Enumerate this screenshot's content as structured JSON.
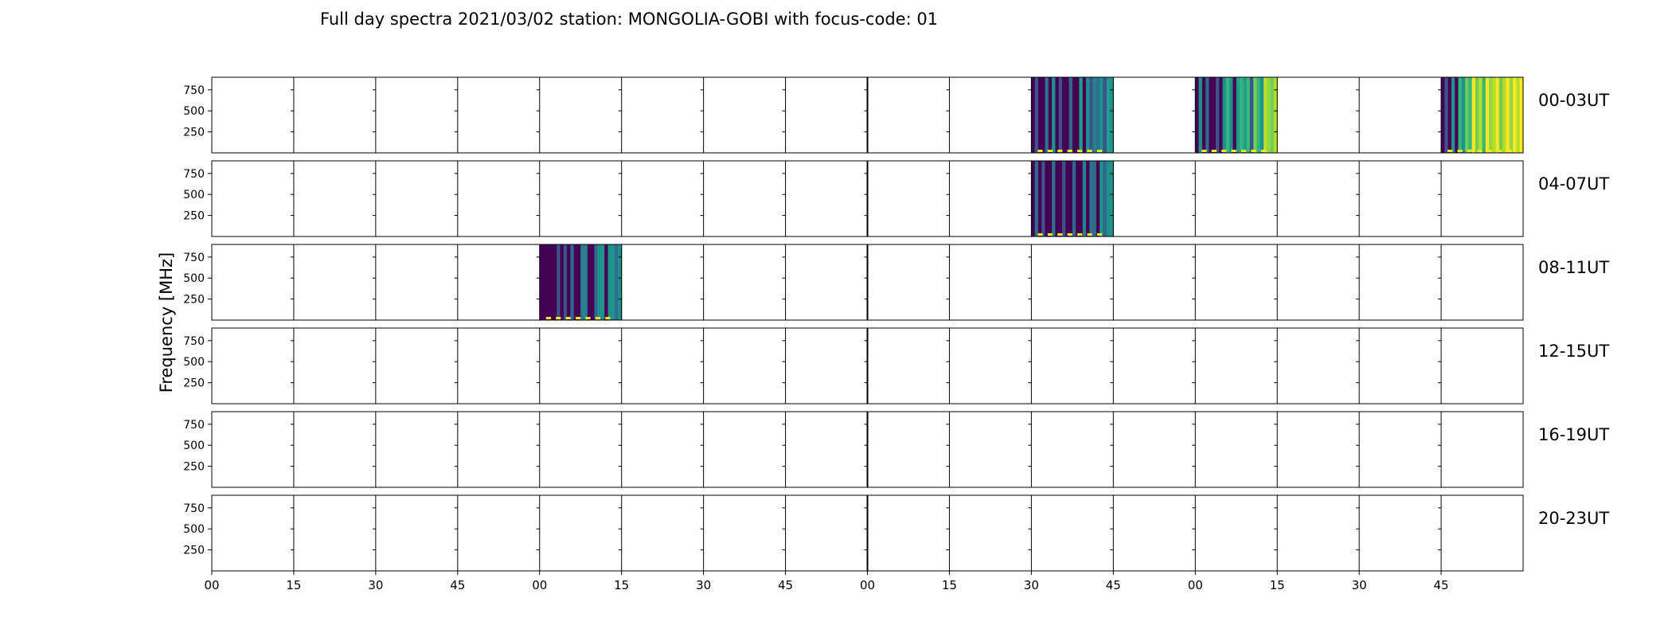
{
  "chart_data": {
    "type": "heatmap",
    "title": "Full day spectra 2021/03/02 station: MONGOLIA-GOBI with focus-code: 01",
    "ylabel": "Frequency [MHz]",
    "ylim": [
      0,
      900
    ],
    "y_ticks": [
      "750",
      "500",
      "250"
    ],
    "x_tick_labels": [
      "00",
      "15",
      "30",
      "45",
      "00",
      "15",
      "30",
      "45",
      "00",
      "15",
      "30",
      "45",
      "00",
      "15",
      "30",
      "45"
    ],
    "columns_per_row": 16,
    "rows": [
      {
        "label": "00-03UT",
        "filled": [
          {
            "slot": 10,
            "colors": [
              "#440154",
              "#3b528b",
              "#440154",
              "#440154",
              "#2c728e",
              "#440154",
              "#21918c",
              "#440154",
              "#3b528b",
              "#440154",
              "#440154",
              "#31688e",
              "#440154",
              "#440154",
              "#1f9e89",
              "#440154",
              "#21918c",
              "#3b528b",
              "#26828e",
              "#2c728e",
              "#21918c",
              "#3b528b",
              "#1f9e89",
              "#21918c"
            ],
            "bottom": "#fde725"
          },
          {
            "slot": 12,
            "colors": [
              "#440154",
              "#21918c",
              "#440154",
              "#31688e",
              "#440154",
              "#440154",
              "#3b528b",
              "#440154",
              "#21918c",
              "#35b779",
              "#21918c",
              "#440154",
              "#1f9e89",
              "#35b779",
              "#1f9e89",
              "#35b779",
              "#3b528b",
              "#6ece58",
              "#35b779",
              "#21918c",
              "#b5de2b",
              "#8fd744",
              "#6ece58",
              "#b5de2b"
            ],
            "bottom": "#fde725"
          },
          {
            "slot": 15,
            "colors": [
              "#440154",
              "#3b528b",
              "#440154",
              "#21918c",
              "#440154",
              "#35b779",
              "#21918c",
              "#6ece58",
              "#35b779",
              "#fde725",
              "#6ece58",
              "#b5de2b",
              "#35b779",
              "#fde725",
              "#8fd744",
              "#b5de2b",
              "#fde725",
              "#6ece58",
              "#b5de2b",
              "#fde725",
              "#8fd744",
              "#fde725",
              "#b5de2b",
              "#fde725"
            ],
            "bottom": "#fde725"
          }
        ]
      },
      {
        "label": "04-07UT",
        "filled": [
          {
            "slot": 10,
            "colors": [
              "#440154",
              "#31688e",
              "#440154",
              "#3b528b",
              "#440154",
              "#440154",
              "#2c728e",
              "#440154",
              "#440154",
              "#3b528b",
              "#440154",
              "#440154",
              "#31688e",
              "#440154",
              "#440154",
              "#26828e",
              "#440154",
              "#2c728e",
              "#31688e",
              "#440154",
              "#21918c",
              "#31688e",
              "#21918c",
              "#21918c"
            ],
            "bottom": "#fde725"
          }
        ]
      },
      {
        "label": "08-11UT",
        "filled": [
          {
            "slot": 4,
            "colors": [
              "#440154",
              "#440154",
              "#440154",
              "#440154",
              "#440154",
              "#3b528b",
              "#440154",
              "#3b528b",
              "#440154",
              "#31688e",
              "#440154",
              "#440154",
              "#26828e",
              "#26828e",
              "#440154",
              "#440154",
              "#31688e",
              "#21918c",
              "#21918c",
              "#440154",
              "#21918c",
              "#21918c",
              "#2c728e",
              "#21918c"
            ],
            "bottom": "#fde725"
          }
        ]
      },
      {
        "label": "12-15UT",
        "filled": []
      },
      {
        "label": "16-19UT",
        "filled": []
      },
      {
        "label": "20-23UT",
        "filled": []
      }
    ]
  }
}
